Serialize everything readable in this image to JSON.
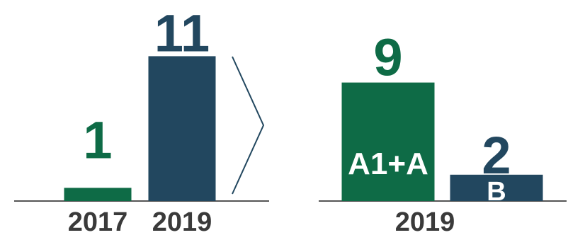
{
  "colors": {
    "green": "#0e6b46",
    "navy": "#22475f",
    "axis": "#555555"
  },
  "chart_data": [
    {
      "type": "bar",
      "title": "",
      "xlabel": "",
      "ylabel": "",
      "categories": [
        "2017",
        "2019"
      ],
      "values": [
        1,
        11
      ],
      "ylim": [
        0,
        11
      ],
      "grid": false
    },
    {
      "type": "bar",
      "title": "",
      "xlabel": "2019",
      "ylabel": "",
      "categories": [
        "A1+A",
        "B"
      ],
      "values": [
        9,
        2
      ],
      "ylim": [
        0,
        11
      ],
      "grid": false
    }
  ],
  "connector": "chevron-right-icon"
}
